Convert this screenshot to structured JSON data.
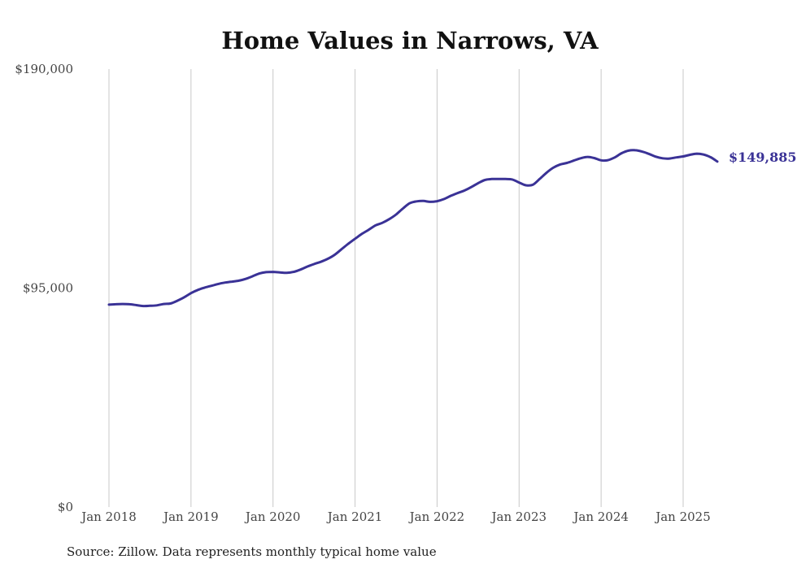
{
  "chart_data": {
    "type": "line",
    "title": "Home Values in Narrows, VA",
    "xlabel": "",
    "ylabel": "",
    "ylim": [
      0,
      190000
    ],
    "yticks": [
      {
        "value": 0,
        "label": "$0"
      },
      {
        "value": 95000,
        "label": "$95,000"
      },
      {
        "value": 190000,
        "label": "$190,000"
      }
    ],
    "xticks": [
      {
        "value": "2018-01",
        "label": "Jan 2018"
      },
      {
        "value": "2019-01",
        "label": "Jan 2019"
      },
      {
        "value": "2020-01",
        "label": "Jan 2020"
      },
      {
        "value": "2021-01",
        "label": "Jan 2021"
      },
      {
        "value": "2022-01",
        "label": "Jan 2022"
      },
      {
        "value": "2023-01",
        "label": "Jan 2023"
      },
      {
        "value": "2024-01",
        "label": "Jan 2024"
      },
      {
        "value": "2025-01",
        "label": "Jan 2025"
      }
    ],
    "grid": "vertical",
    "legend": "none",
    "series": [
      {
        "color": "#3a3296",
        "end_label": "$149,885",
        "points": [
          {
            "x": "2018-01",
            "y": 87800
          },
          {
            "x": "2018-02",
            "y": 88000
          },
          {
            "x": "2018-03",
            "y": 88100
          },
          {
            "x": "2018-04",
            "y": 88000
          },
          {
            "x": "2018-05",
            "y": 87600
          },
          {
            "x": "2018-06",
            "y": 87200
          },
          {
            "x": "2018-07",
            "y": 87300
          },
          {
            "x": "2018-08",
            "y": 87500
          },
          {
            "x": "2018-09",
            "y": 88100
          },
          {
            "x": "2018-10",
            "y": 88300
          },
          {
            "x": "2018-11",
            "y": 89500
          },
          {
            "x": "2018-12",
            "y": 91000
          },
          {
            "x": "2019-01",
            "y": 92800
          },
          {
            "x": "2019-02",
            "y": 94200
          },
          {
            "x": "2019-03",
            "y": 95200
          },
          {
            "x": "2019-04",
            "y": 96000
          },
          {
            "x": "2019-05",
            "y": 96800
          },
          {
            "x": "2019-06",
            "y": 97400
          },
          {
            "x": "2019-07",
            "y": 97800
          },
          {
            "x": "2019-08",
            "y": 98200
          },
          {
            "x": "2019-09",
            "y": 99000
          },
          {
            "x": "2019-10",
            "y": 100100
          },
          {
            "x": "2019-11",
            "y": 101300
          },
          {
            "x": "2019-12",
            "y": 101900
          },
          {
            "x": "2020-01",
            "y": 102000
          },
          {
            "x": "2020-02",
            "y": 101800
          },
          {
            "x": "2020-03",
            "y": 101600
          },
          {
            "x": "2020-04",
            "y": 102000
          },
          {
            "x": "2020-05",
            "y": 103000
          },
          {
            "x": "2020-06",
            "y": 104300
          },
          {
            "x": "2020-07",
            "y": 105400
          },
          {
            "x": "2020-08",
            "y": 106400
          },
          {
            "x": "2020-09",
            "y": 107700
          },
          {
            "x": "2020-10",
            "y": 109400
          },
          {
            "x": "2020-11",
            "y": 111800
          },
          {
            "x": "2020-12",
            "y": 114200
          },
          {
            "x": "2021-01",
            "y": 116400
          },
          {
            "x": "2021-02",
            "y": 118500
          },
          {
            "x": "2021-03",
            "y": 120300
          },
          {
            "x": "2021-04",
            "y": 122200
          },
          {
            "x": "2021-05",
            "y": 123300
          },
          {
            "x": "2021-06",
            "y": 124900
          },
          {
            "x": "2021-07",
            "y": 126900
          },
          {
            "x": "2021-08",
            "y": 129500
          },
          {
            "x": "2021-09",
            "y": 131800
          },
          {
            "x": "2021-10",
            "y": 132600
          },
          {
            "x": "2021-11",
            "y": 132800
          },
          {
            "x": "2021-12",
            "y": 132400
          },
          {
            "x": "2022-01",
            "y": 132700
          },
          {
            "x": "2022-02",
            "y": 133600
          },
          {
            "x": "2022-03",
            "y": 135000
          },
          {
            "x": "2022-04",
            "y": 136200
          },
          {
            "x": "2022-05",
            "y": 137300
          },
          {
            "x": "2022-06",
            "y": 138800
          },
          {
            "x": "2022-07",
            "y": 140500
          },
          {
            "x": "2022-08",
            "y": 141900
          },
          {
            "x": "2022-09",
            "y": 142300
          },
          {
            "x": "2022-10",
            "y": 142300
          },
          {
            "x": "2022-11",
            "y": 142300
          },
          {
            "x": "2022-12",
            "y": 142100
          },
          {
            "x": "2023-01",
            "y": 140800
          },
          {
            "x": "2023-02",
            "y": 139600
          },
          {
            "x": "2023-03",
            "y": 139800
          },
          {
            "x": "2023-04",
            "y": 142300
          },
          {
            "x": "2023-05",
            "y": 145000
          },
          {
            "x": "2023-06",
            "y": 147200
          },
          {
            "x": "2023-07",
            "y": 148600
          },
          {
            "x": "2023-08",
            "y": 149300
          },
          {
            "x": "2023-09",
            "y": 150300
          },
          {
            "x": "2023-10",
            "y": 151300
          },
          {
            "x": "2023-11",
            "y": 151900
          },
          {
            "x": "2023-12",
            "y": 151400
          },
          {
            "x": "2024-01",
            "y": 150400
          },
          {
            "x": "2024-02",
            "y": 150500
          },
          {
            "x": "2024-03",
            "y": 151700
          },
          {
            "x": "2024-04",
            "y": 153500
          },
          {
            "x": "2024-05",
            "y": 154600
          },
          {
            "x": "2024-06",
            "y": 154800
          },
          {
            "x": "2024-07",
            "y": 154200
          },
          {
            "x": "2024-08",
            "y": 153200
          },
          {
            "x": "2024-09",
            "y": 152000
          },
          {
            "x": "2024-10",
            "y": 151300
          },
          {
            "x": "2024-11",
            "y": 151200
          },
          {
            "x": "2024-12",
            "y": 151700
          },
          {
            "x": "2025-01",
            "y": 152100
          },
          {
            "x": "2025-02",
            "y": 152800
          },
          {
            "x": "2025-03",
            "y": 153300
          },
          {
            "x": "2025-04",
            "y": 152900
          },
          {
            "x": "2025-05",
            "y": 151800
          },
          {
            "x": "2025-06",
            "y": 149885
          }
        ]
      }
    ]
  },
  "source_note": "Source: Zillow. Data represents monthly typical home value"
}
